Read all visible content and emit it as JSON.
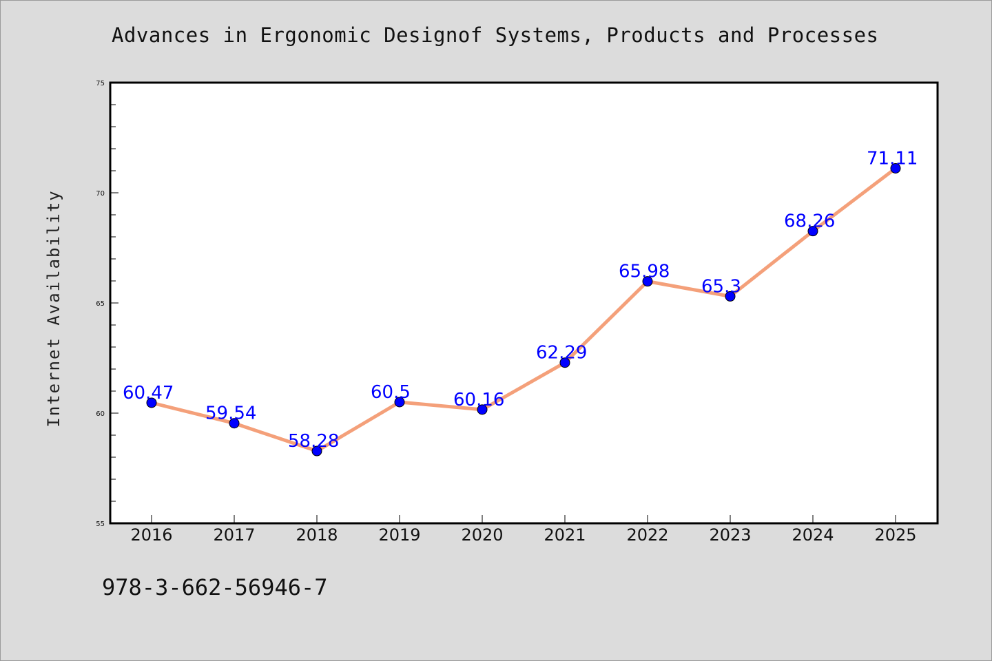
{
  "title": "Advances in Ergonomic Designof Systems, Products and Processes",
  "footer_text": "978-3-662-56946-7",
  "colors": {
    "background": "#dcdcdc",
    "plot_background": "#ffffff",
    "line": "#f4a07a",
    "marker": "#0000ff",
    "data_label": "#0000ff"
  },
  "chart_data": {
    "type": "line",
    "x": [
      "2016",
      "2017",
      "2018",
      "2019",
      "2020",
      "2021",
      "2022",
      "2023",
      "2024",
      "2025"
    ],
    "series": [
      {
        "values": [
          60.47,
          59.54,
          58.28,
          60.5,
          60.16,
          62.29,
          65.98,
          65.3,
          68.26,
          71.11
        ]
      }
    ],
    "data_labels": [
      "60.47",
      "59.54",
      "58.28",
      "60.5",
      "60.16",
      "62.29",
      "65.98",
      "65.3",
      "68.26",
      "71.11"
    ],
    "ylabel": "Internet Availability",
    "xlabel": "",
    "ylim": [
      55,
      75
    ],
    "yticks": [
      55,
      60,
      65,
      70,
      75
    ],
    "grid": false,
    "legend": "none"
  }
}
